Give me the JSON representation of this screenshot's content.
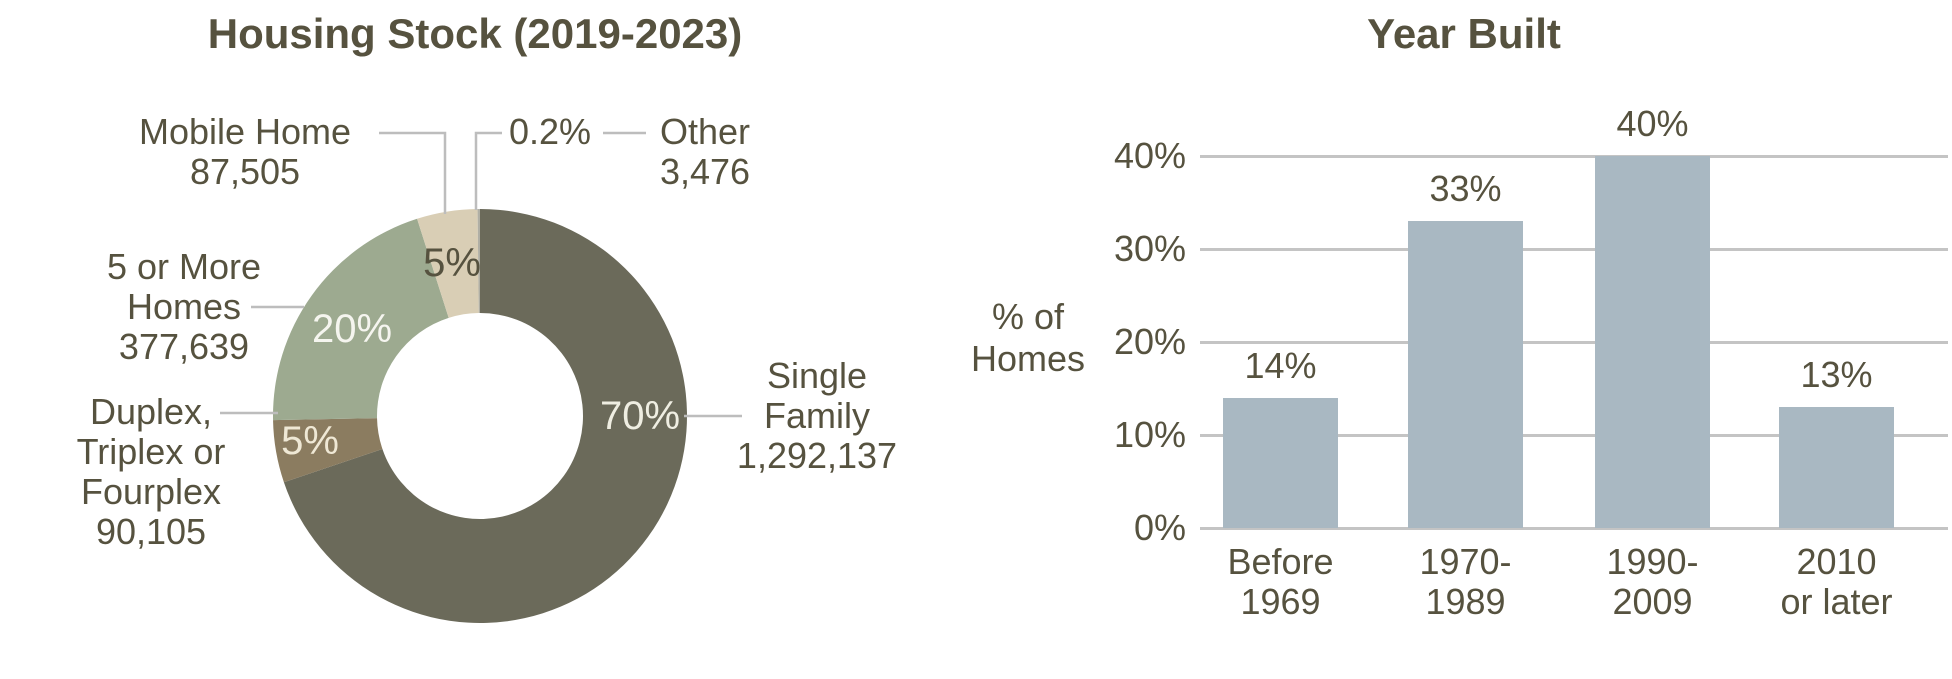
{
  "colors": {
    "text": "#56523F",
    "background": "#FFFFFF",
    "callout_line": "#BDBDBD",
    "gridline": "#C4C4C4",
    "bar": "#A9B8C2"
  },
  "chart_data": [
    {
      "type": "pie",
      "donut": true,
      "title": "Housing Stock (2019-2023)",
      "start_angle_deg": 0,
      "direction": "clockwise",
      "slices": [
        {
          "label": "Single Family",
          "value": 1292137,
          "value_text": "1,292,137",
          "pct_text": "70%",
          "display": "Single\nFamily\n1,292,137",
          "color": "#6B6A5A",
          "pct_color": "#EFEEE2"
        },
        {
          "label": "Duplex, Triplex or Fourplex",
          "value": 90105,
          "value_text": "90,105",
          "pct_text": "5%",
          "display": "Duplex,\nTriplex or\nFourplex\n90,105",
          "color": "#8B7C60",
          "pct_color": "#EFE8D5"
        },
        {
          "label": "5 or More Homes",
          "value": 377639,
          "value_text": "377,639",
          "pct_text": "20%",
          "display": "5 or More\nHomes\n377,639",
          "color": "#9DAA90",
          "pct_color": "#F5F5EF"
        },
        {
          "label": "Mobile Home",
          "value": 87505,
          "value_text": "87,505",
          "pct_text": "5%",
          "display": "Mobile Home\n87,505",
          "color": "#D9CEB5",
          "pct_color": "#56523F"
        },
        {
          "label": "Other",
          "value": 3476,
          "value_text": "3,476",
          "pct_text": "0.2%",
          "display": "Other\n3,476",
          "color": "#B0AFA5",
          "pct_color": "#56523F"
        }
      ]
    },
    {
      "type": "bar",
      "title": "Year Built",
      "ylabel": "% of\nHomes",
      "categories": [
        "Before\n1969",
        "1970-\n1989",
        "1990-\n2009",
        "2010\nor later"
      ],
      "values": [
        14,
        33,
        40,
        13
      ],
      "data_labels": [
        "14%",
        "33%",
        "40%",
        "13%"
      ],
      "yticks": [
        {
          "value": 0,
          "label": "0%"
        },
        {
          "value": 10,
          "label": "10%"
        },
        {
          "value": 20,
          "label": "20%"
        },
        {
          "value": 30,
          "label": "30%"
        },
        {
          "value": 40,
          "label": "40%"
        }
      ],
      "ylim": [
        0,
        45
      ],
      "grid": true,
      "legend": false
    }
  ]
}
